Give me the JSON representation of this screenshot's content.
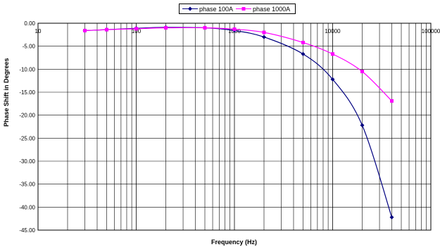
{
  "chart_data": {
    "type": "line",
    "title": "",
    "xlabel": "Frequency (Hz)",
    "ylabel": "Phase Shift in Degrees",
    "xscale": "log",
    "xlim": [
      10,
      100000
    ],
    "ylim": [
      -45,
      0
    ],
    "x_ticks": [
      "10",
      "100",
      "1000",
      "10000",
      "100000"
    ],
    "y_ticks": [
      "0.00",
      "-5.00",
      "-10.00",
      "-15.00",
      "-20.00",
      "-25.00",
      "-30.00",
      "-35.00",
      "-40.00",
      "-45.00"
    ],
    "grid": true,
    "legend_position": "top-center",
    "series": [
      {
        "name": "phase 100A",
        "color": "#000080",
        "marker": "diamond",
        "x": [
          30,
          50,
          100,
          200,
          500,
          1000,
          2000,
          5000,
          10000,
          20000,
          40000
        ],
        "y": [
          -1.6,
          -1.4,
          -1.1,
          -0.9,
          -1.0,
          -1.6,
          -3.0,
          -6.7,
          -12.2,
          -22.2,
          -42.2
        ]
      },
      {
        "name": "phase 1000A",
        "color": "#ff00ff",
        "marker": "square",
        "x": [
          30,
          50,
          100,
          200,
          500,
          1000,
          2000,
          5000,
          10000,
          20000,
          40000
        ],
        "y": [
          -1.6,
          -1.4,
          -1.2,
          -1.0,
          -1.0,
          -1.3,
          -2.0,
          -4.2,
          -6.7,
          -10.5,
          -16.9
        ]
      }
    ]
  }
}
